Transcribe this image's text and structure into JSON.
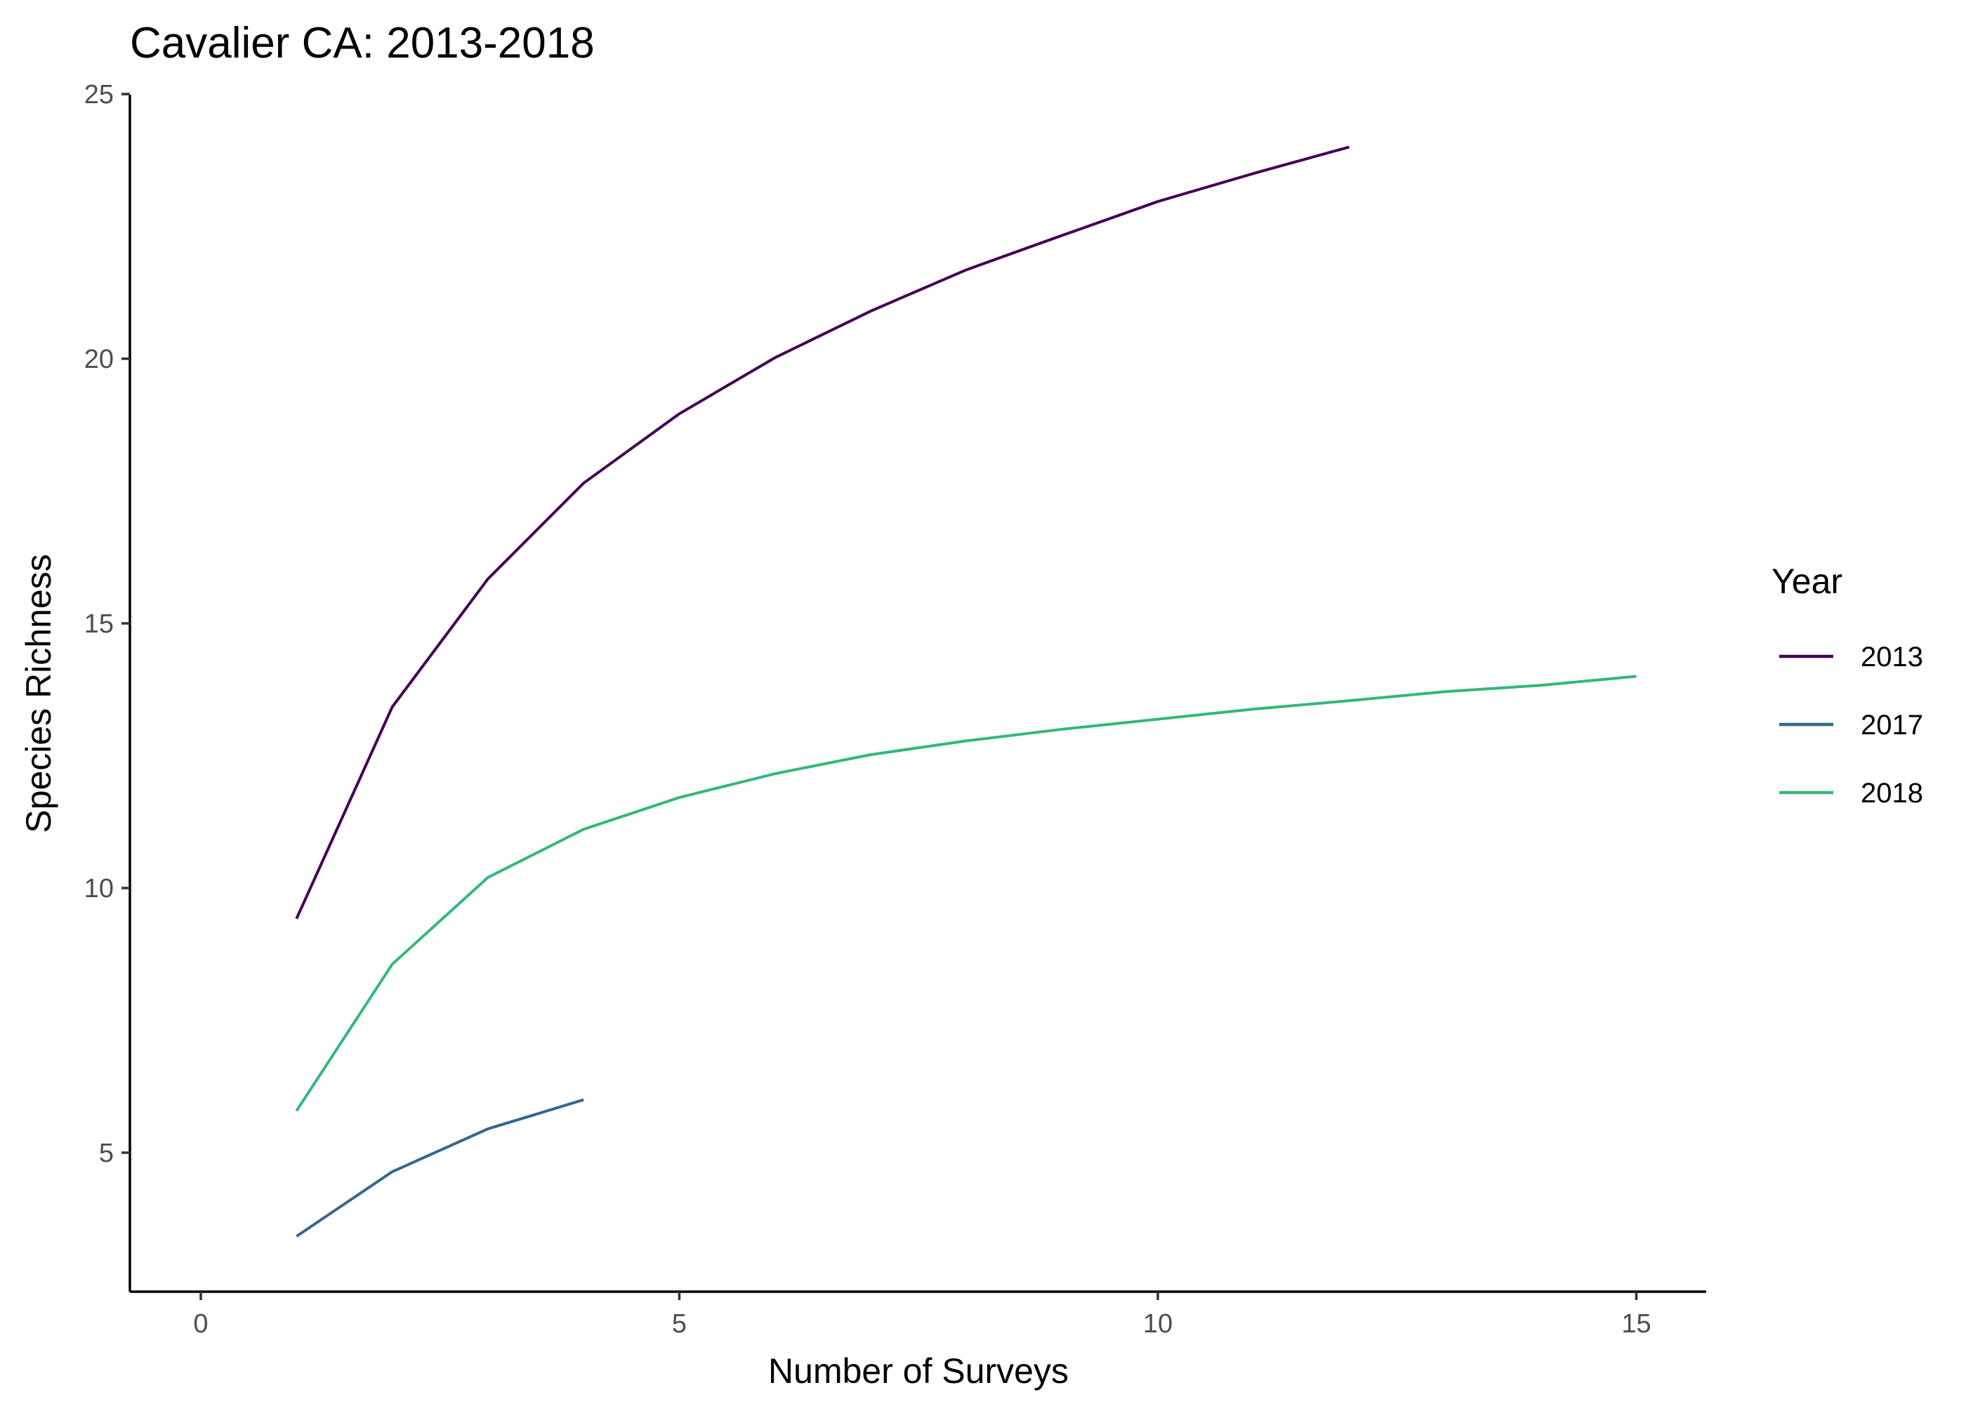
{
  "chart_data": {
    "type": "line",
    "title": "Cavalier CA: 2013-2018",
    "xlabel": "Number of Surveys",
    "ylabel": "Species Richness",
    "xlim": [
      -0.75,
      15.75
    ],
    "ylim": [
      2.5,
      25
    ],
    "xticks": [
      0,
      5,
      10,
      15
    ],
    "yticks": [
      5,
      10,
      15,
      20,
      25
    ],
    "grid": false,
    "legend": {
      "title": "Year",
      "placement": "right"
    },
    "series": [
      {
        "name": "2013",
        "color": "#440154",
        "x": [
          1,
          2,
          3,
          4,
          5,
          6,
          7,
          8,
          9,
          10,
          11,
          12
        ],
        "values": [
          9.42,
          13.42,
          15.84,
          17.65,
          18.96,
          20.02,
          20.9,
          21.68,
          22.33,
          22.97,
          23.5,
          24.0
        ]
      },
      {
        "name": "2017",
        "color": "#31688E",
        "x": [
          1,
          2,
          3,
          4
        ],
        "values": [
          3.42,
          4.64,
          5.45,
          6.0
        ]
      },
      {
        "name": "2018",
        "color": "#35B779",
        "x": [
          1,
          2,
          3,
          4,
          5,
          6,
          7,
          8,
          9,
          10,
          11,
          12,
          13,
          14,
          15
        ],
        "values": [
          5.79,
          8.56,
          10.2,
          11.11,
          11.71,
          12.16,
          12.52,
          12.78,
          13.0,
          13.19,
          13.38,
          13.54,
          13.71,
          13.83,
          14.0
        ]
      }
    ]
  }
}
